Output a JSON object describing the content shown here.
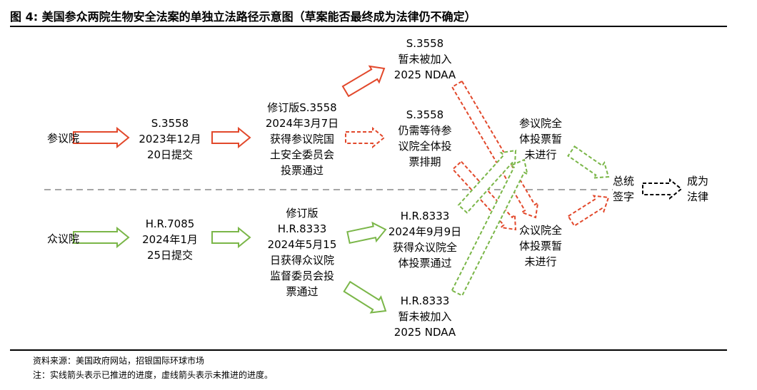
{
  "title": "图 4: 美国参众两院生物安全法案的单独立法路径示意图（草案能否最终成为法律仍不确定）",
  "lanes": {
    "senate": "参议院",
    "house": "众议院"
  },
  "senate": {
    "step1": [
      "S.3558",
      "2023年12月",
      "20日提交"
    ],
    "step2": [
      "修订版S.3558",
      "2024年3月7日",
      "获得参议院国",
      "土安全委员会",
      "投票通过"
    ],
    "step3_ndaa": [
      "S.3558",
      "暂未被加入",
      "2025 NDAA"
    ],
    "step3_wait": [
      "S.3558",
      "仍需等待参",
      "议院全体投",
      "票排期"
    ],
    "floor_vote": [
      "参议院全",
      "体投票暂",
      "未进行"
    ]
  },
  "house": {
    "step1": [
      "H.R.7085",
      "2024年1月",
      "25日提交"
    ],
    "step2": [
      "修订版",
      "H.R.8333",
      "2024年5月15",
      "日获得众议院",
      "监督委员会投",
      "票通过"
    ],
    "step3_passed": [
      "H.R.8333",
      "2024年9月9日",
      "获得众议院全",
      "体投票通过"
    ],
    "step3_ndaa": [
      "H.R.8333",
      "暂未被加入",
      "2025 NDAA"
    ],
    "floor_vote": [
      "众议院全",
      "体投票暂",
      "未进行"
    ]
  },
  "sign": [
    "总统",
    "签字"
  ],
  "law": [
    "成为",
    "法律"
  ],
  "footer": {
    "source": "资料来源：美国政府网站，招银国际环球市场",
    "note": "注：实线箭头表示已推进的进度，虚线箭头表示未推进的进度。"
  },
  "colors": {
    "senate": "#e2482b",
    "house": "#7ab648",
    "final": "#000000",
    "divider": "#a6a6a6"
  }
}
